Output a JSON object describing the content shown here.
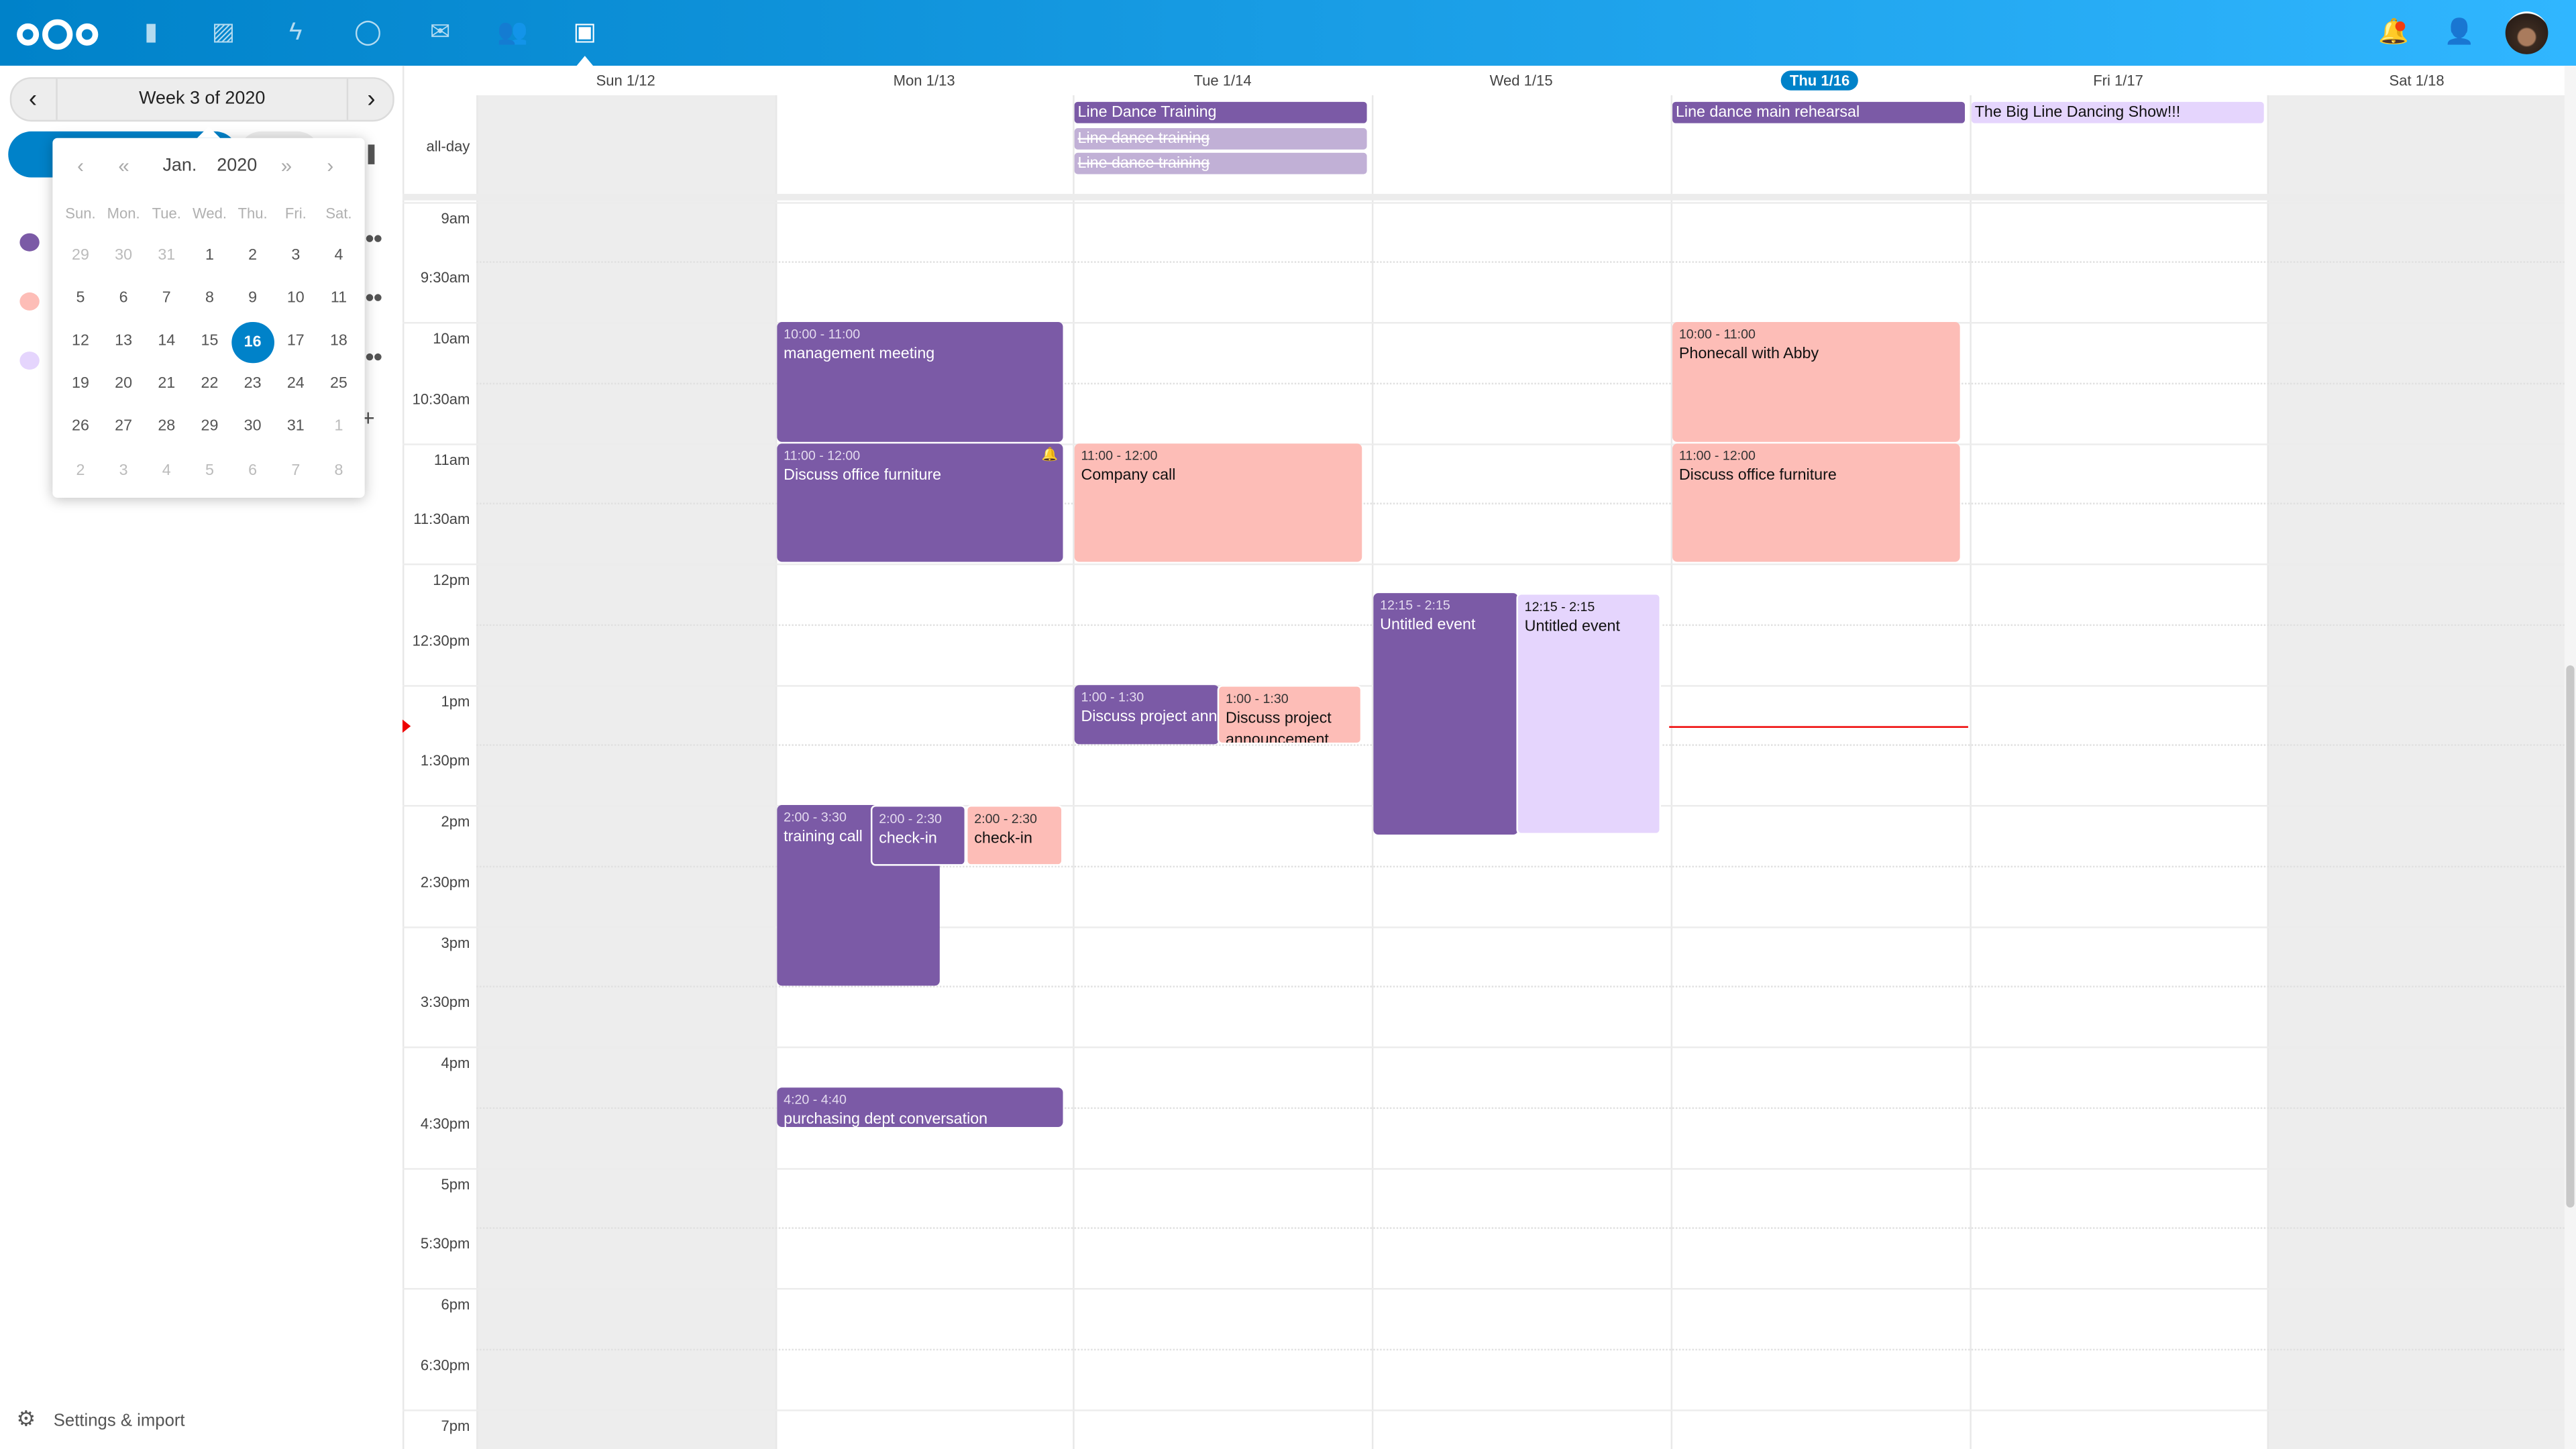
{
  "topbar": {
    "apps": [
      "logo-icon",
      "files-icon",
      "photos-icon",
      "activity-icon",
      "talk-icon",
      "mail-icon",
      "contacts-icon",
      "calendar-icon"
    ],
    "right": [
      "notifications-icon",
      "contacts-menu-icon",
      "user-avatar"
    ]
  },
  "sidebar": {
    "week_label": "Week 3 of 2020",
    "calendar_colors": [
      "#7b5aa6",
      "#fdbdb7",
      "#e5d5fd"
    ],
    "settings_label": "Settings & import"
  },
  "datepicker": {
    "month": "Jan.",
    "year": "2020",
    "weekdays": [
      "Sun.",
      "Mon.",
      "Tue.",
      "Wed.",
      "Thu.",
      "Fri.",
      "Sat."
    ],
    "weeks": [
      [
        [
          "29",
          1
        ],
        [
          "30",
          1
        ],
        [
          "31",
          1
        ],
        [
          "1",
          0
        ],
        [
          "2",
          0
        ],
        [
          "3",
          0
        ],
        [
          "4",
          0
        ]
      ],
      [
        [
          "5",
          0
        ],
        [
          "6",
          0
        ],
        [
          "7",
          0
        ],
        [
          "8",
          0
        ],
        [
          "9",
          0
        ],
        [
          "10",
          0
        ],
        [
          "11",
          0
        ]
      ],
      [
        [
          "12",
          0
        ],
        [
          "13",
          0
        ],
        [
          "14",
          0
        ],
        [
          "15",
          0
        ],
        [
          "16",
          2
        ],
        [
          "17",
          0
        ],
        [
          "18",
          0
        ]
      ],
      [
        [
          "19",
          0
        ],
        [
          "20",
          0
        ],
        [
          "21",
          0
        ],
        [
          "22",
          0
        ],
        [
          "23",
          0
        ],
        [
          "24",
          0
        ],
        [
          "25",
          0
        ]
      ],
      [
        [
          "26",
          0
        ],
        [
          "27",
          0
        ],
        [
          "28",
          0
        ],
        [
          "29",
          0
        ],
        [
          "30",
          0
        ],
        [
          "31",
          0
        ],
        [
          "1",
          1
        ]
      ],
      [
        [
          "2",
          1
        ],
        [
          "3",
          1
        ],
        [
          "4",
          1
        ],
        [
          "5",
          1
        ],
        [
          "6",
          1
        ],
        [
          "7",
          1
        ],
        [
          "8",
          1
        ]
      ]
    ]
  },
  "calendar": {
    "days": [
      "Sun 1/12",
      "Mon 1/13",
      "Tue 1/14",
      "Wed 1/15",
      "Thu 1/16",
      "Fri 1/17",
      "Sat 1/18"
    ],
    "allday_label": "all-day",
    "time_labels": [
      "9am",
      "9:30am",
      "10am",
      "10:30am",
      "11am",
      "11:30am",
      "12pm",
      "12:30pm",
      "1pm",
      "1:30pm",
      "2pm",
      "2:30pm",
      "3pm",
      "3:30pm",
      "4pm",
      "4:30pm",
      "5pm",
      "5:30pm",
      "6pm",
      "6:30pm",
      "7pm"
    ],
    "allday": [
      {
        "title": "Line Dance Training"
      },
      {
        "title": "Line dance training"
      },
      {
        "title": "Line dance training"
      },
      {
        "title": "Line dance main rehearsal"
      },
      {
        "title": "The Big Line Dancing Show!!!"
      }
    ],
    "events": [
      {
        "time": "10:00 - 11:00",
        "title": "management meeting"
      },
      {
        "time": "11:00 - 12:00",
        "title": "Discuss office furniture"
      },
      {
        "time": "2:00 - 3:30",
        "title": "training call"
      },
      {
        "time": "2:00 - 2:30",
        "title": "check-in"
      },
      {
        "time": "2:00 - 2:30",
        "title": "check-in"
      },
      {
        "time": "4:20 - 4:40",
        "title": "purchasing dept conversation"
      },
      {
        "time": "11:00 - 12:00",
        "title": "Company call"
      },
      {
        "time": "1:00 - 1:30",
        "title": "Discuss project announcement"
      },
      {
        "time": "1:00 - 1:30",
        "title": "Discuss project announcement"
      },
      {
        "time": "12:15 - 2:15",
        "title": "Untitled event"
      },
      {
        "time": "12:15 - 2:15",
        "title": "Untitled event"
      },
      {
        "time": "10:00 - 11:00",
        "title": "Phonecall with Abby"
      },
      {
        "time": "11:00 - 12:00",
        "title": "Discuss office furniture"
      }
    ]
  }
}
